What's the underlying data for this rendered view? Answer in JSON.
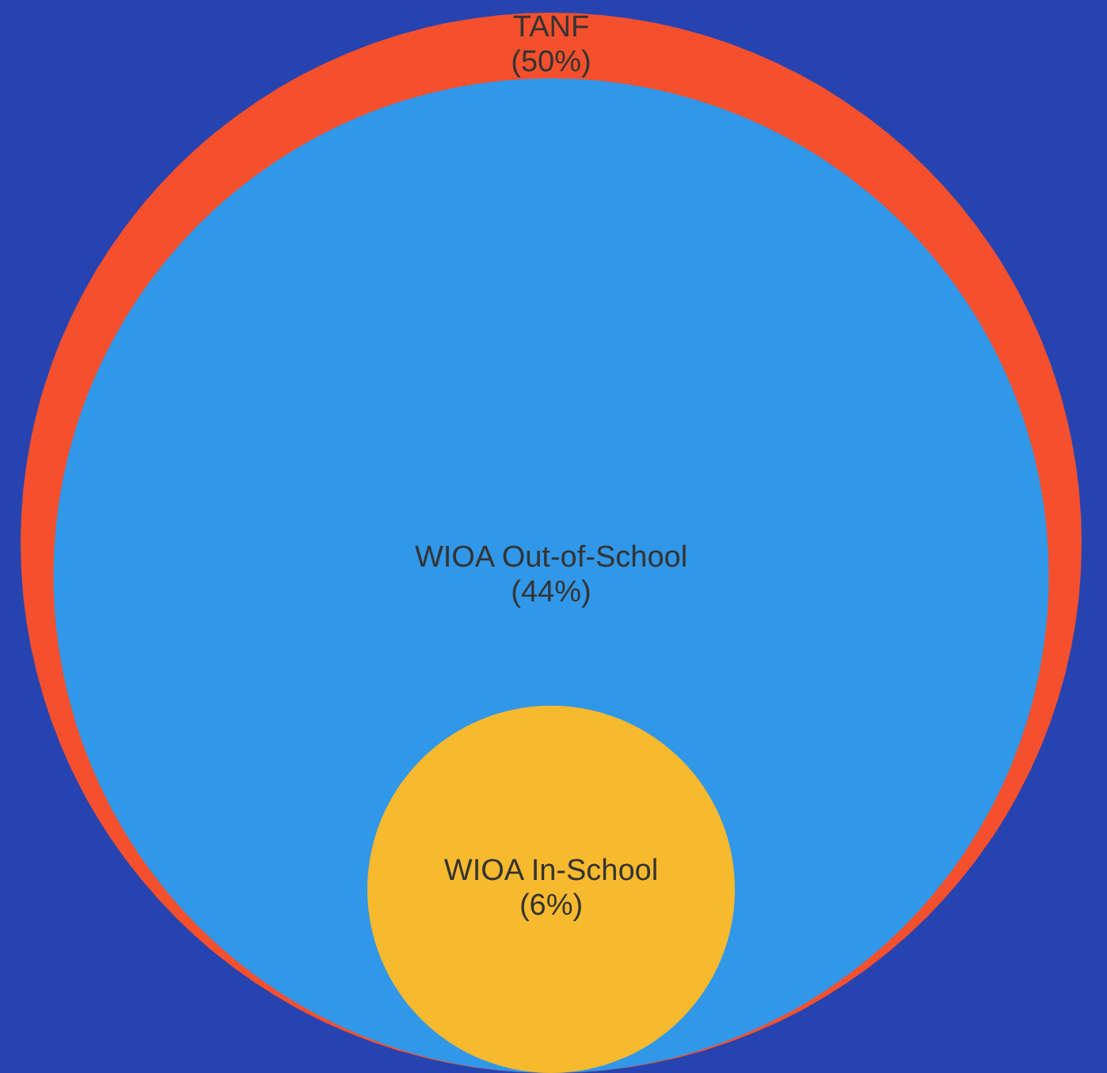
{
  "chart_data": {
    "type": "other",
    "categories": [
      "TANF",
      "WIOA Out-of-School",
      "WIOA In-School"
    ],
    "values": [
      50,
      44,
      6
    ],
    "value_labels": [
      "(50%)",
      "(44%)",
      "(6%)"
    ],
    "colors": [
      "#f5502e",
      "#3197e8",
      "#f7b92e"
    ]
  }
}
